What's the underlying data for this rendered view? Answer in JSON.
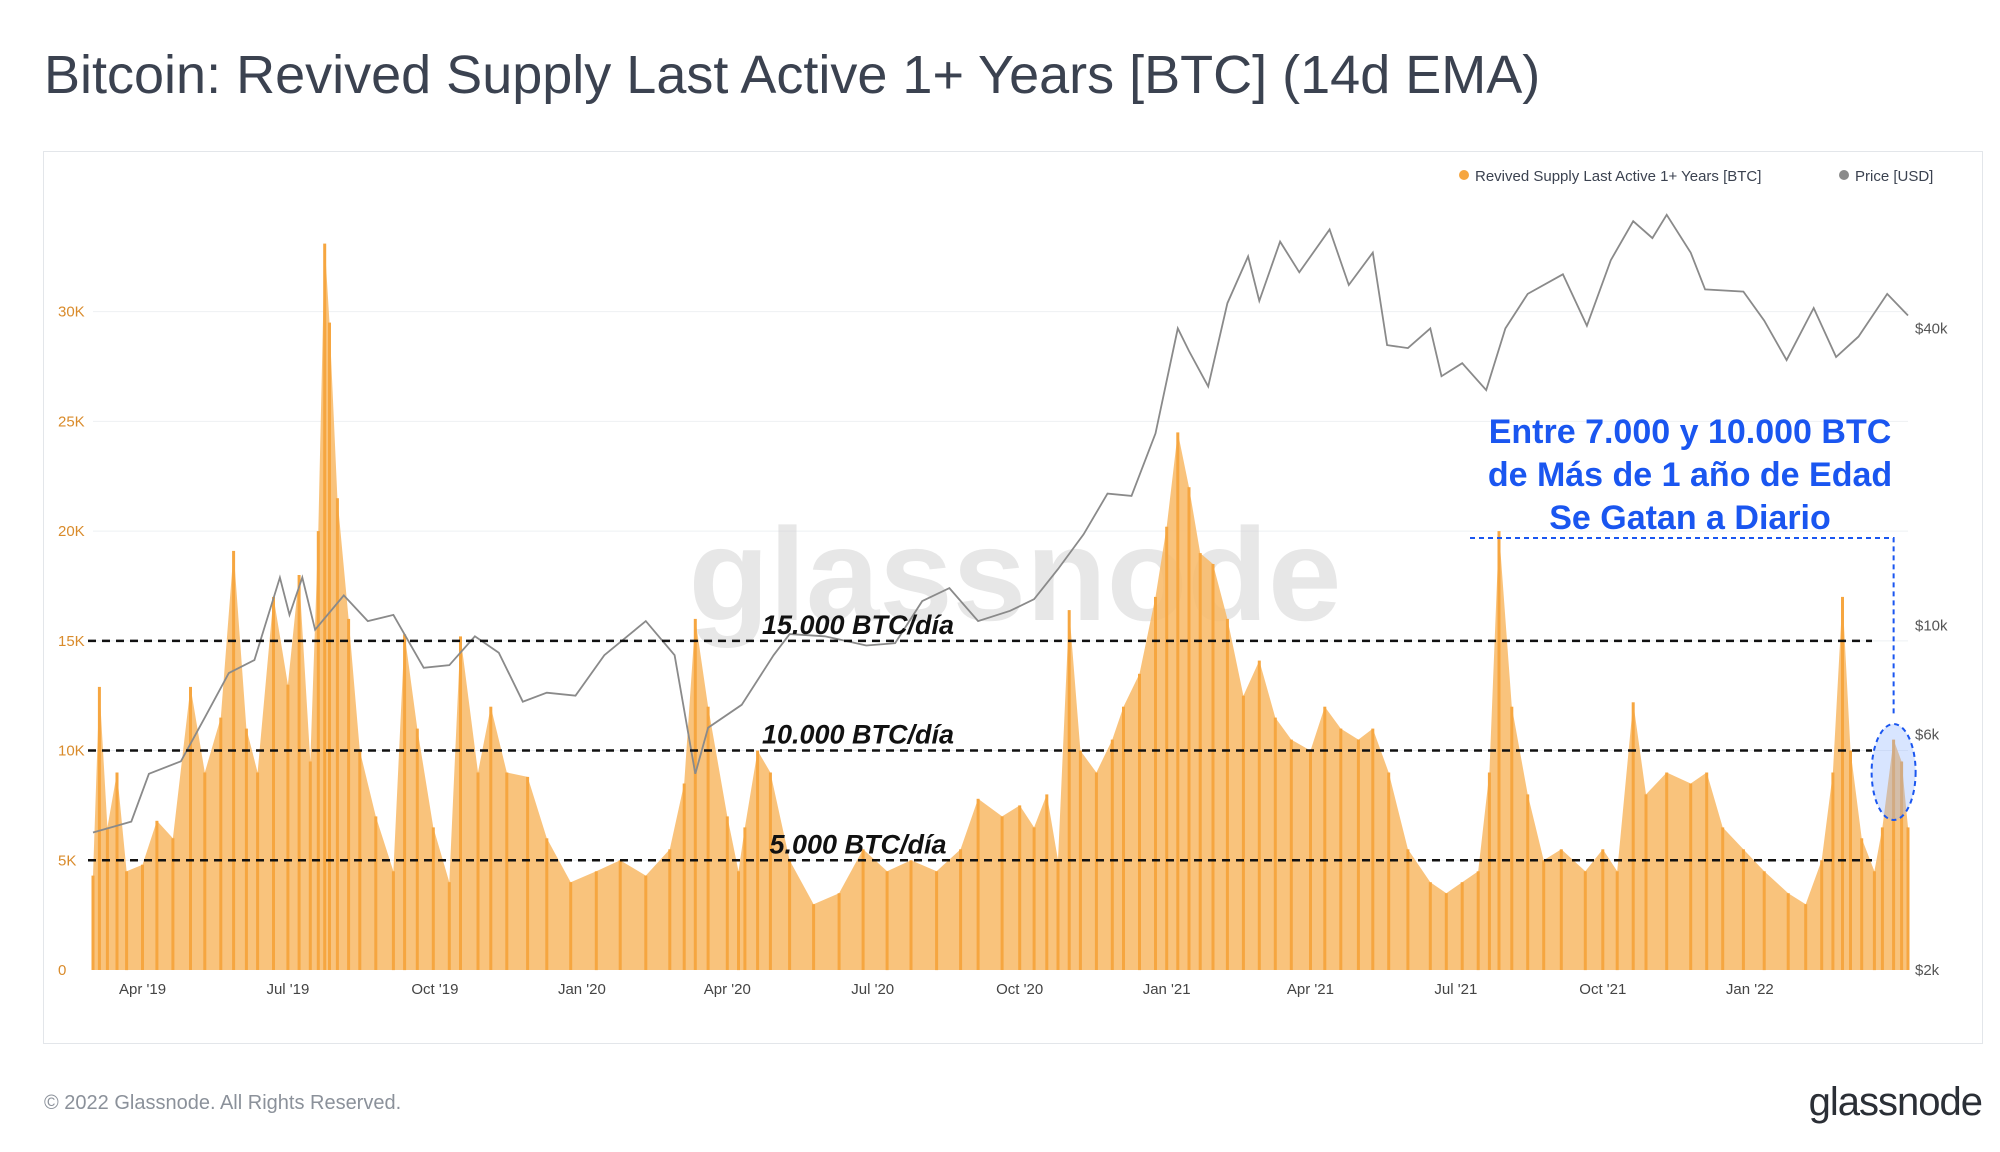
{
  "header": {
    "title": "Bitcoin: Revived Supply Last Active 1+ Years [BTC] (14d EMA)"
  },
  "footer": {
    "copyright": "© 2022 Glassnode. All Rights Reserved.",
    "logo": "glassnode"
  },
  "watermark": "glassnode",
  "colors": {
    "bars": "#f6a640",
    "price": "#8a8a8a",
    "annotation": "#1a56f0",
    "text": "#3b4250"
  },
  "chart_data": {
    "type": "bar",
    "title": "Bitcoin: Revived Supply Last Active 1+ Years [BTC] (14d EMA)",
    "xlabel": "",
    "ylabel": "",
    "x_range": [
      "2019-03-01",
      "2022-04-10"
    ],
    "ylim": [
      0,
      36000
    ],
    "y_ticks": [
      {
        "value": 0,
        "label": "0"
      },
      {
        "value": 5000,
        "label": "5K"
      },
      {
        "value": 10000,
        "label": "10K"
      },
      {
        "value": 15000,
        "label": "15K"
      },
      {
        "value": 20000,
        "label": "20K"
      },
      {
        "value": 25000,
        "label": "25K"
      },
      {
        "value": 30000,
        "label": "30K"
      }
    ],
    "y2_scale": "log",
    "y2lim": [
      2000,
      80000
    ],
    "y2_ticks": [
      {
        "value": 2000,
        "label": "$2k"
      },
      {
        "value": 6000,
        "label": "$6k"
      },
      {
        "value": 10000,
        "label": "$10k"
      },
      {
        "value": 40000,
        "label": "$40k"
      }
    ],
    "x_ticks": [
      {
        "date": "2019-04-01",
        "label": "Apr '19"
      },
      {
        "date": "2019-07-01",
        "label": "Jul '19"
      },
      {
        "date": "2019-10-01",
        "label": "Oct '19"
      },
      {
        "date": "2020-01-01",
        "label": "Jan '20"
      },
      {
        "date": "2020-04-01",
        "label": "Apr '20"
      },
      {
        "date": "2020-07-01",
        "label": "Jul '20"
      },
      {
        "date": "2020-10-01",
        "label": "Oct '20"
      },
      {
        "date": "2021-01-01",
        "label": "Jan '21"
      },
      {
        "date": "2021-04-01",
        "label": "Apr '21"
      },
      {
        "date": "2021-07-01",
        "label": "Jul '21"
      },
      {
        "date": "2021-10-01",
        "label": "Oct '21"
      },
      {
        "date": "2022-01-01",
        "label": "Jan '22"
      }
    ],
    "legend": {
      "placement": "top-right",
      "entries": [
        {
          "name": "Revived Supply Last Active 1+ Years [BTC]",
          "color": "#f6a640"
        },
        {
          "name": "Price [USD]",
          "color": "#8a8a8a"
        }
      ]
    },
    "series": [
      {
        "name": "Revived Supply Last Active 1+ Years [BTC]",
        "axis": "left",
        "type": "bar",
        "color": "#f6a640",
        "values": [
          [
            "2019-03-01",
            4300
          ],
          [
            "2019-03-05",
            12900
          ],
          [
            "2019-03-10",
            6500
          ],
          [
            "2019-03-16",
            9000
          ],
          [
            "2019-03-22",
            4500
          ],
          [
            "2019-04-01",
            4800
          ],
          [
            "2019-04-10",
            6800
          ],
          [
            "2019-04-20",
            6000
          ],
          [
            "2019-05-01",
            12900
          ],
          [
            "2019-05-10",
            9000
          ],
          [
            "2019-05-20",
            11500
          ],
          [
            "2019-05-28",
            19100
          ],
          [
            "2019-06-05",
            11000
          ],
          [
            "2019-06-12",
            9000
          ],
          [
            "2019-06-22",
            17000
          ],
          [
            "2019-07-01",
            13000
          ],
          [
            "2019-07-08",
            18000
          ],
          [
            "2019-07-15",
            9500
          ],
          [
            "2019-07-20",
            20000
          ],
          [
            "2019-07-24",
            33100
          ],
          [
            "2019-07-27",
            29500
          ],
          [
            "2019-08-01",
            21500
          ],
          [
            "2019-08-08",
            16000
          ],
          [
            "2019-08-15",
            10000
          ],
          [
            "2019-08-25",
            7000
          ],
          [
            "2019-09-05",
            4500
          ],
          [
            "2019-09-12",
            15300
          ],
          [
            "2019-09-20",
            11000
          ],
          [
            "2019-09-30",
            6500
          ],
          [
            "2019-10-10",
            4000
          ],
          [
            "2019-10-17",
            15200
          ],
          [
            "2019-10-28",
            9000
          ],
          [
            "2019-11-05",
            12000
          ],
          [
            "2019-11-15",
            9000
          ],
          [
            "2019-11-28",
            8800
          ],
          [
            "2019-12-10",
            6000
          ],
          [
            "2019-12-25",
            4000
          ],
          [
            "2020-01-10",
            4500
          ],
          [
            "2020-01-25",
            5000
          ],
          [
            "2020-02-10",
            4300
          ],
          [
            "2020-02-25",
            5500
          ],
          [
            "2020-03-05",
            8500
          ],
          [
            "2020-03-12",
            16000
          ],
          [
            "2020-03-20",
            12000
          ],
          [
            "2020-04-01",
            7000
          ],
          [
            "2020-04-08",
            4500
          ],
          [
            "2020-04-12",
            6500
          ],
          [
            "2020-04-20",
            10000
          ],
          [
            "2020-04-28",
            9000
          ],
          [
            "2020-05-10",
            5000
          ],
          [
            "2020-05-25",
            3000
          ],
          [
            "2020-06-10",
            3500
          ],
          [
            "2020-06-25",
            5500
          ],
          [
            "2020-07-10",
            4500
          ],
          [
            "2020-07-25",
            5000
          ],
          [
            "2020-08-10",
            4500
          ],
          [
            "2020-08-25",
            5500
          ],
          [
            "2020-09-05",
            7800
          ],
          [
            "2020-09-20",
            7000
          ],
          [
            "2020-10-01",
            7500
          ],
          [
            "2020-10-10",
            6500
          ],
          [
            "2020-10-18",
            8000
          ],
          [
            "2020-10-25",
            5000
          ],
          [
            "2020-11-01",
            16400
          ],
          [
            "2020-11-08",
            10000
          ],
          [
            "2020-11-18",
            9000
          ],
          [
            "2020-11-28",
            10500
          ],
          [
            "2020-12-05",
            12000
          ],
          [
            "2020-12-15",
            13500
          ],
          [
            "2020-12-25",
            17000
          ],
          [
            "2021-01-01",
            20200
          ],
          [
            "2021-01-08",
            24500
          ],
          [
            "2021-01-15",
            22000
          ],
          [
            "2021-01-22",
            19000
          ],
          [
            "2021-01-30",
            18500
          ],
          [
            "2021-02-08",
            16000
          ],
          [
            "2021-02-18",
            12500
          ],
          [
            "2021-02-28",
            14100
          ],
          [
            "2021-03-10",
            11500
          ],
          [
            "2021-03-20",
            10500
          ],
          [
            "2021-04-01",
            10000
          ],
          [
            "2021-04-10",
            12000
          ],
          [
            "2021-04-20",
            11000
          ],
          [
            "2021-05-01",
            10500
          ],
          [
            "2021-05-10",
            11000
          ],
          [
            "2021-05-20",
            9000
          ],
          [
            "2021-06-01",
            5500
          ],
          [
            "2021-06-15",
            4000
          ],
          [
            "2021-06-25",
            3500
          ],
          [
            "2021-07-05",
            4000
          ],
          [
            "2021-07-15",
            4500
          ],
          [
            "2021-07-22",
            9000
          ],
          [
            "2021-07-28",
            20000
          ],
          [
            "2021-08-05",
            12000
          ],
          [
            "2021-08-15",
            8000
          ],
          [
            "2021-08-25",
            5000
          ],
          [
            "2021-09-05",
            5500
          ],
          [
            "2021-09-20",
            4500
          ],
          [
            "2021-10-01",
            5500
          ],
          [
            "2021-10-10",
            4500
          ],
          [
            "2021-10-20",
            12200
          ],
          [
            "2021-10-28",
            8000
          ],
          [
            "2021-11-10",
            9000
          ],
          [
            "2021-11-25",
            8500
          ],
          [
            "2021-12-05",
            9000
          ],
          [
            "2021-12-15",
            6500
          ],
          [
            "2021-12-28",
            5500
          ],
          [
            "2022-01-10",
            4500
          ],
          [
            "2022-01-25",
            3500
          ],
          [
            "2022-02-05",
            3000
          ],
          [
            "2022-02-15",
            5000
          ],
          [
            "2022-02-22",
            9000
          ],
          [
            "2022-02-28",
            17000
          ],
          [
            "2022-03-05",
            10000
          ],
          [
            "2022-03-12",
            6000
          ],
          [
            "2022-03-20",
            4500
          ],
          [
            "2022-03-25",
            6500
          ],
          [
            "2022-04-01",
            10500
          ],
          [
            "2022-04-06",
            9500
          ],
          [
            "2022-04-10",
            6500
          ]
        ]
      },
      {
        "name": "Price [USD]",
        "axis": "right",
        "type": "line",
        "color": "#8a8a8a",
        "values": [
          [
            "2019-03-01",
            3800
          ],
          [
            "2019-03-25",
            4000
          ],
          [
            "2019-04-05",
            5000
          ],
          [
            "2019-04-25",
            5300
          ],
          [
            "2019-05-10",
            6500
          ],
          [
            "2019-05-25",
            8000
          ],
          [
            "2019-06-10",
            8500
          ],
          [
            "2019-06-26",
            12500
          ],
          [
            "2019-07-02",
            10500
          ],
          [
            "2019-07-10",
            12500
          ],
          [
            "2019-07-18",
            9800
          ],
          [
            "2019-08-05",
            11500
          ],
          [
            "2019-08-20",
            10200
          ],
          [
            "2019-09-05",
            10500
          ],
          [
            "2019-09-24",
            8200
          ],
          [
            "2019-10-10",
            8300
          ],
          [
            "2019-10-26",
            9500
          ],
          [
            "2019-11-10",
            8800
          ],
          [
            "2019-11-25",
            7000
          ],
          [
            "2019-12-10",
            7300
          ],
          [
            "2019-12-28",
            7200
          ],
          [
            "2020-01-15",
            8700
          ],
          [
            "2020-02-10",
            10200
          ],
          [
            "2020-02-28",
            8700
          ],
          [
            "2020-03-12",
            5000
          ],
          [
            "2020-03-20",
            6200
          ],
          [
            "2020-04-10",
            6900
          ],
          [
            "2020-04-30",
            8700
          ],
          [
            "2020-05-10",
            9600
          ],
          [
            "2020-06-01",
            9500
          ],
          [
            "2020-06-27",
            9100
          ],
          [
            "2020-07-15",
            9200
          ],
          [
            "2020-08-01",
            11200
          ],
          [
            "2020-08-18",
            11900
          ],
          [
            "2020-09-05",
            10200
          ],
          [
            "2020-09-25",
            10700
          ],
          [
            "2020-10-10",
            11300
          ],
          [
            "2020-10-25",
            13000
          ],
          [
            "2020-11-10",
            15300
          ],
          [
            "2020-11-25",
            18500
          ],
          [
            "2020-12-10",
            18300
          ],
          [
            "2020-12-25",
            24500
          ],
          [
            "2021-01-08",
            40000
          ],
          [
            "2021-01-15",
            36000
          ],
          [
            "2021-01-27",
            30500
          ],
          [
            "2021-02-08",
            45000
          ],
          [
            "2021-02-21",
            56000
          ],
          [
            "2021-02-28",
            45500
          ],
          [
            "2021-03-13",
            60000
          ],
          [
            "2021-03-25",
            52000
          ],
          [
            "2021-04-13",
            63500
          ],
          [
            "2021-04-25",
            49000
          ],
          [
            "2021-05-10",
            57000
          ],
          [
            "2021-05-19",
            37000
          ],
          [
            "2021-06-01",
            36500
          ],
          [
            "2021-06-15",
            40000
          ],
          [
            "2021-06-22",
            32000
          ],
          [
            "2021-07-05",
            34000
          ],
          [
            "2021-07-20",
            30000
          ],
          [
            "2021-08-01",
            40000
          ],
          [
            "2021-08-15",
            47000
          ],
          [
            "2021-09-06",
            51500
          ],
          [
            "2021-09-21",
            40500
          ],
          [
            "2021-10-06",
            55000
          ],
          [
            "2021-10-20",
            66000
          ],
          [
            "2021-11-01",
            61000
          ],
          [
            "2021-11-10",
            68000
          ],
          [
            "2021-11-25",
            57000
          ],
          [
            "2021-12-04",
            48000
          ],
          [
            "2021-12-28",
            47500
          ],
          [
            "2022-01-10",
            41500
          ],
          [
            "2022-01-24",
            34500
          ],
          [
            "2022-02-10",
            44000
          ],
          [
            "2022-02-24",
            35000
          ],
          [
            "2022-03-10",
            38500
          ],
          [
            "2022-03-28",
            47000
          ],
          [
            "2022-04-10",
            42500
          ]
        ]
      }
    ],
    "reference_lines": [
      {
        "value": 15000,
        "label": "15.000 BTC/día"
      },
      {
        "value": 10000,
        "label": "10.000 BTC/día"
      },
      {
        "value": 5000,
        "label": "5.000 BTC/día"
      }
    ],
    "annotations": [
      {
        "lines": [
          "Entre 7.000 y 10.000 BTC",
          "de Más de 1 año de Edad",
          "Se Gatan a Diario"
        ],
        "color": "#1a56f0",
        "target": "2022-04-01"
      }
    ]
  }
}
